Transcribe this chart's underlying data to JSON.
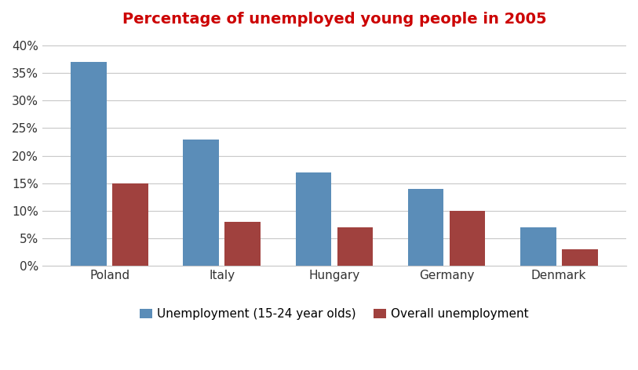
{
  "title": "Percentage of unemployed young people in 2005",
  "title_color": "#cc0000",
  "categories": [
    "Poland",
    "Italy",
    "Hungary",
    "Germany",
    "Denmark"
  ],
  "youth_unemployment": [
    37,
    23,
    17,
    14,
    7
  ],
  "overall_unemployment": [
    15,
    8,
    7,
    10,
    3
  ],
  "youth_color": "#5b8db8",
  "overall_color": "#a0413e",
  "legend_labels": [
    "Unemployment (15-24 year olds)",
    "Overall unemployment"
  ],
  "ylim": [
    0,
    42
  ],
  "yticks": [
    0,
    5,
    10,
    15,
    20,
    25,
    30,
    35,
    40
  ],
  "yticklabels": [
    "0%",
    "5%",
    "10%",
    "15%",
    "20%",
    "25%",
    "30%",
    "35%",
    "40%"
  ],
  "background_color": "#ffffff",
  "grid_color": "#c8c8c8",
  "bar_width": 0.32,
  "bar_gap": 0.05
}
